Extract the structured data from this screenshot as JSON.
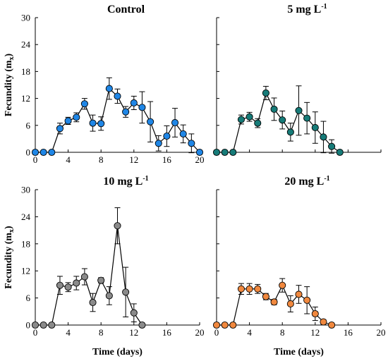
{
  "chart_data": [
    {
      "type": "line",
      "title": "Control",
      "title_sup": "",
      "ylabel": "Fecundity (m",
      "ylabel_sub": "x",
      "ylabel_tail": ")",
      "xlabel": "",
      "xlim": [
        0,
        20
      ],
      "ylim": [
        0,
        30
      ],
      "xticks": [
        0,
        4,
        8,
        12,
        16,
        20
      ],
      "yticks": [
        0,
        6,
        12,
        18,
        24,
        30
      ],
      "color": "#1f86e6",
      "x": [
        0,
        1,
        2,
        3,
        4,
        5,
        6,
        7,
        8,
        9,
        10,
        11,
        12,
        13,
        14,
        15,
        16,
        17,
        18,
        19,
        20
      ],
      "y": [
        0,
        0,
        0,
        5.3,
        7.0,
        7.8,
        10.8,
        6.5,
        6.4,
        14.2,
        12.5,
        9.0,
        11.0,
        10.0,
        6.8,
        2.0,
        3.6,
        6.6,
        4.1,
        2.0,
        0
      ],
      "err": [
        0,
        0,
        0,
        1.2,
        0.8,
        1.0,
        1.2,
        1.8,
        1.5,
        2.4,
        1.6,
        1.2,
        1.5,
        3.5,
        4.5,
        1.7,
        2.3,
        3.2,
        2.0,
        2.1,
        0
      ]
    },
    {
      "type": "line",
      "title": "5 mg L",
      "title_sup": "-1",
      "ylabel": "",
      "ylabel_sub": "",
      "ylabel_tail": "",
      "xlabel": "",
      "xlim": [
        0,
        20
      ],
      "ylim": [
        0,
        30
      ],
      "xticks": [],
      "yticks": [],
      "color": "#167b78",
      "x": [
        0,
        1,
        2,
        3,
        4,
        5,
        6,
        7,
        8,
        9,
        10,
        11,
        12,
        13,
        14,
        15
      ],
      "y": [
        0,
        0,
        0,
        7.3,
        7.9,
        6.5,
        13.2,
        9.6,
        7.2,
        4.5,
        9.3,
        7.6,
        5.5,
        3.4,
        1.3,
        0
      ],
      "err": [
        0,
        0,
        0,
        1.0,
        1.0,
        1.0,
        1.5,
        2.5,
        2.0,
        2.0,
        5.5,
        3.5,
        3.5,
        3.5,
        1.5,
        0
      ]
    },
    {
      "type": "line",
      "title": "10 mg L",
      "title_sup": "-1",
      "ylabel": "Fecundity (m",
      "ylabel_sub": "x",
      "ylabel_tail": ")",
      "xlabel": "Time (days)",
      "xlim": [
        0,
        20
      ],
      "ylim": [
        0,
        30
      ],
      "xticks": [
        0,
        4,
        8,
        12,
        16,
        20
      ],
      "yticks": [
        0,
        6,
        12,
        18,
        24,
        30
      ],
      "color": "#8a8a8a",
      "x": [
        0,
        1,
        2,
        3,
        4,
        5,
        6,
        7,
        8,
        9,
        10,
        11,
        12,
        13
      ],
      "y": [
        0,
        0,
        0,
        8.8,
        8.4,
        9.3,
        10.7,
        5.0,
        9.9,
        6.5,
        22.0,
        7.3,
        2.7,
        0
      ],
      "err": [
        0,
        0,
        0,
        2.0,
        1.0,
        1.5,
        1.8,
        2.0,
        0.6,
        2.0,
        4.0,
        5.5,
        2.0,
        0
      ]
    },
    {
      "type": "line",
      "title": "20 mg L",
      "title_sup": "-1",
      "ylabel": "",
      "ylabel_sub": "",
      "ylabel_tail": "",
      "xlabel": "Time (days)",
      "xlim": [
        0,
        20
      ],
      "ylim": [
        0,
        30
      ],
      "xticks": [
        0,
        4,
        8,
        12,
        16,
        20
      ],
      "yticks": [],
      "color": "#f0883e",
      "x": [
        0,
        1,
        2,
        3,
        4,
        5,
        6,
        7,
        8,
        9,
        10,
        11,
        12,
        13,
        14
      ],
      "y": [
        0,
        0,
        0,
        8.0,
        8.0,
        8.0,
        6.3,
        5.1,
        8.8,
        4.7,
        6.8,
        5.5,
        2.5,
        0.7,
        0
      ],
      "err": [
        0,
        0,
        0,
        1.2,
        1.2,
        1.0,
        0.7,
        0.6,
        1.5,
        1.8,
        2.0,
        3.0,
        1.5,
        0.5,
        0
      ]
    }
  ]
}
